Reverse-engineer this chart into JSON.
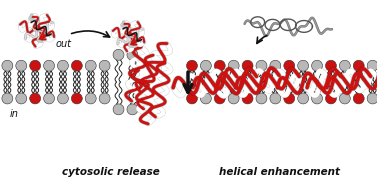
{
  "bg_color": "#ffffff",
  "label_cytosolic": "cytosolic release",
  "label_helical": "helical enhancement",
  "label_out": "out",
  "label_in": "in",
  "red": "#cc1111",
  "dark": "#111111",
  "gray_ball": "#b8b8b8",
  "gray_ball_dark": "#888888",
  "stick_color": "#222222",
  "figsize": [
    3.78,
    1.87
  ],
  "dpi": 100
}
